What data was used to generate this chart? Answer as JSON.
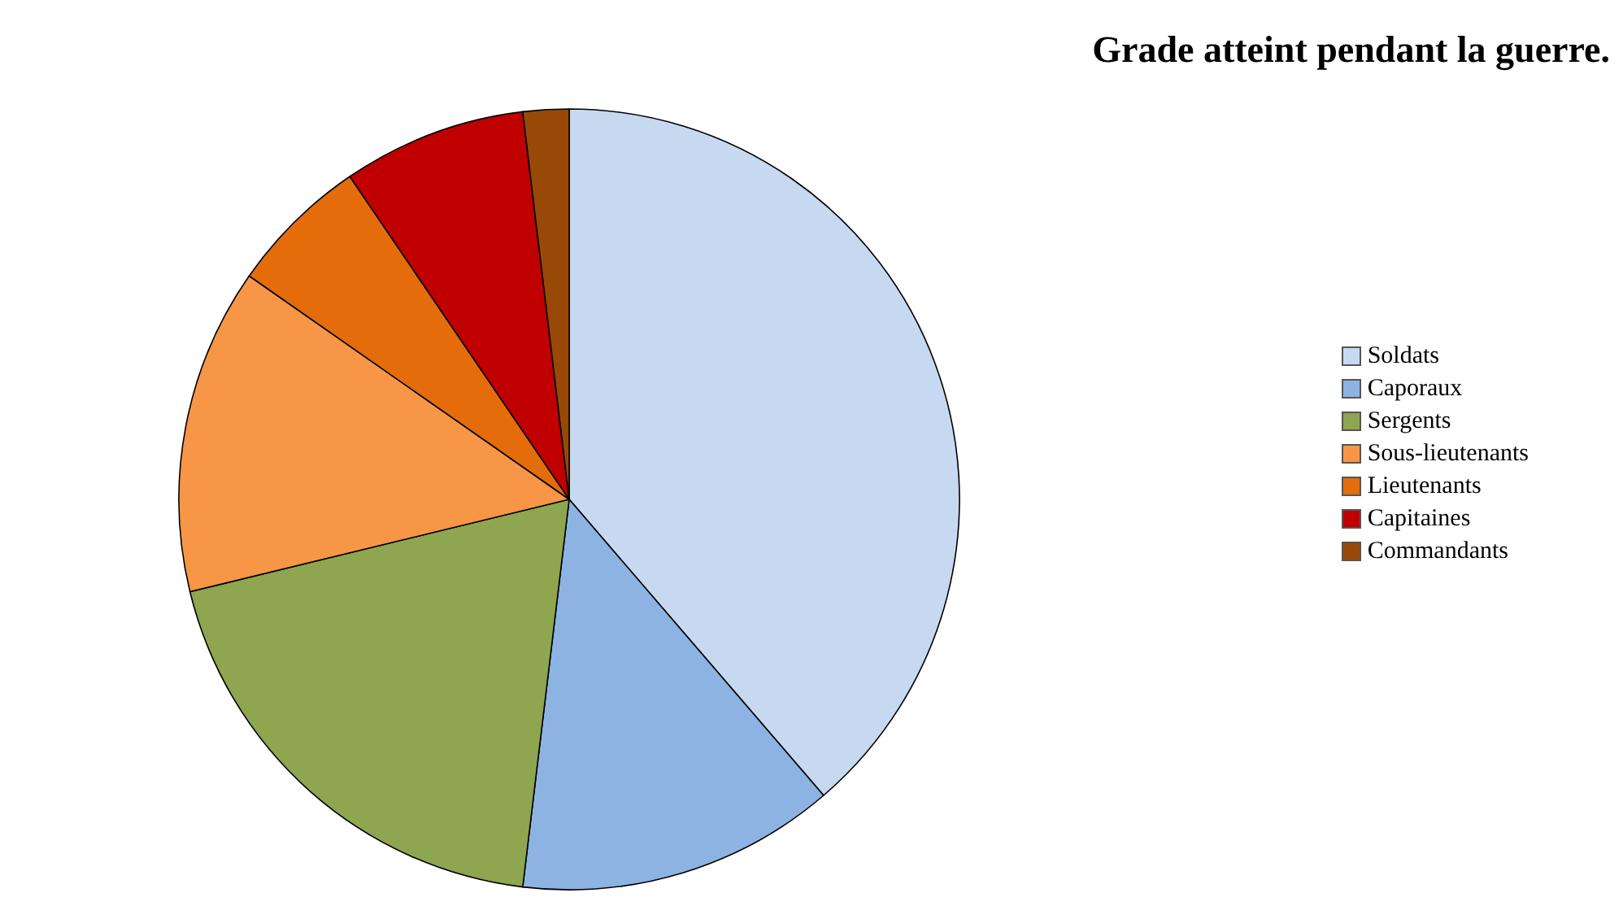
{
  "chart_data": {
    "type": "pie",
    "title": "Grade atteint pendant la guerre.",
    "categories": [
      "Soldats",
      "Caporaux",
      "Sergents",
      "Sous-lieutenants",
      "Lieutenants",
      "Capitaines",
      "Commandants"
    ],
    "values": [
      38.7,
      13.2,
      19.3,
      13.5,
      5.8,
      7.6,
      1.9
    ],
    "colors": [
      "#c6d9f1",
      "#8db3e2",
      "#8da64f",
      "#f79646",
      "#e46c0a",
      "#c00000",
      "#984807"
    ],
    "legend": "right"
  }
}
